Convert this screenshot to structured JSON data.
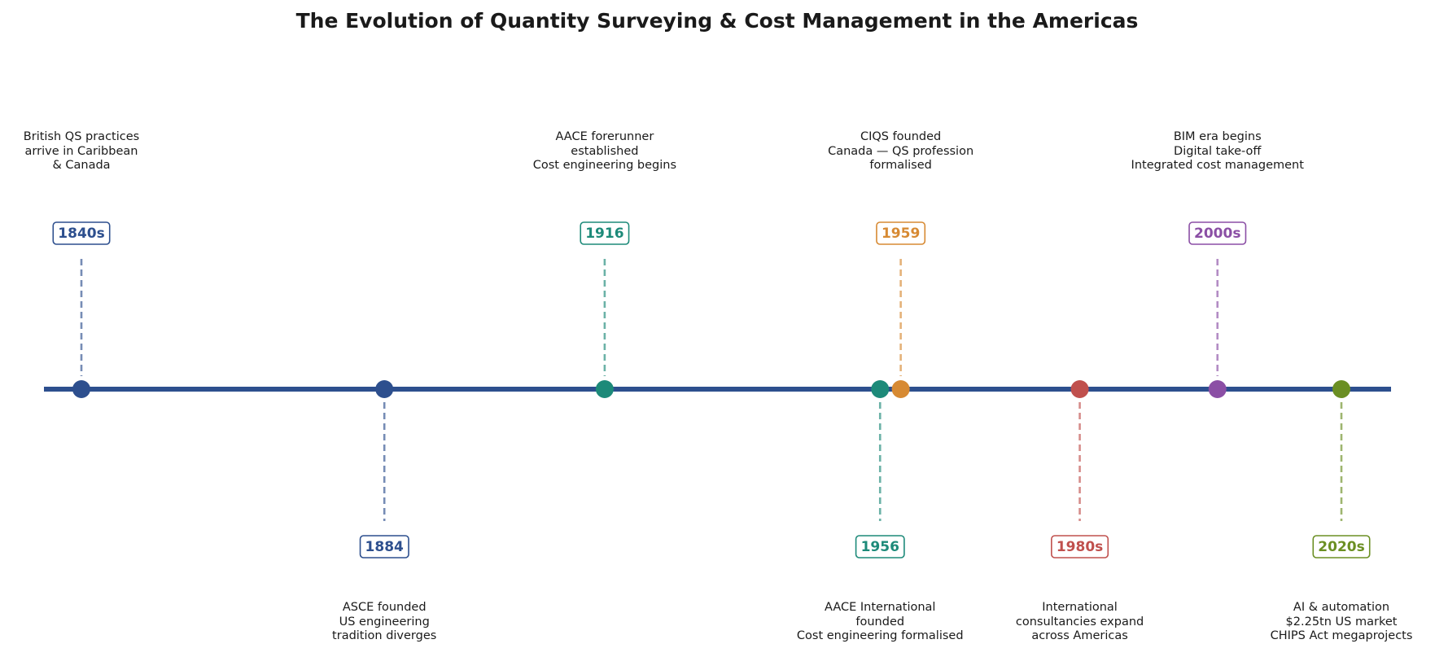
{
  "title": "The Evolution of Quantity Surveying & Cost Management in the Americas",
  "colors": {
    "axis": "#2d4f8e",
    "navy": "#2d4f8e",
    "teal": "#1d8a79",
    "orange": "#d78a33",
    "red": "#c0504d",
    "purple": "#8b4fa5",
    "green": "#6b8f23"
  },
  "chart_data": {
    "type": "timeline",
    "events": [
      {
        "label": "1840s",
        "description": [
          "British QS practices",
          "arrive in Caribbean",
          "& Canada"
        ],
        "year": 1840,
        "side": "above",
        "color": "navy"
      },
      {
        "label": "1884",
        "description": [
          "ASCE founded",
          "US engineering",
          "tradition diverges"
        ],
        "year": 1884,
        "side": "below",
        "color": "navy"
      },
      {
        "label": "1916",
        "description": [
          "AACE forerunner",
          "established",
          "Cost engineering begins"
        ],
        "year": 1916,
        "side": "above",
        "color": "teal"
      },
      {
        "label": "1956",
        "description": [
          "AACE International",
          "founded",
          "Cost engineering formalised"
        ],
        "year": 1956,
        "side": "below",
        "color": "teal"
      },
      {
        "label": "1959",
        "description": [
          "CIQS founded",
          "Canada — QS profession",
          "formalised"
        ],
        "year": 1959,
        "side": "above",
        "color": "orange"
      },
      {
        "label": "1980s",
        "description": [
          "International",
          "consultancies expand",
          "across Americas"
        ],
        "year": 1985,
        "side": "below",
        "color": "red"
      },
      {
        "label": "2000s",
        "description": [
          "BIM era begins",
          "Digital take-off",
          "Integrated cost management"
        ],
        "year": 2005,
        "side": "above",
        "color": "purple"
      },
      {
        "label": "2020s",
        "description": [
          "AI & automation",
          "$2.25tn US market",
          "CHIPS Act megaprojects"
        ],
        "year": 2023,
        "side": "below",
        "color": "green"
      }
    ]
  }
}
